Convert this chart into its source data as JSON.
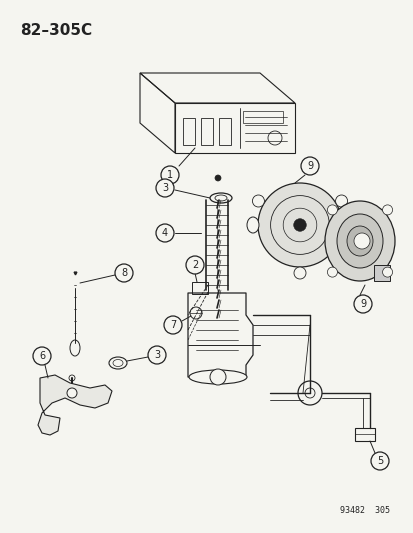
{
  "title_code": "82–305C",
  "diagram_id": "93482  305",
  "bg": "#f5f5f0",
  "lc": "#222222",
  "fig_w": 4.14,
  "fig_h": 5.33,
  "dpi": 100
}
